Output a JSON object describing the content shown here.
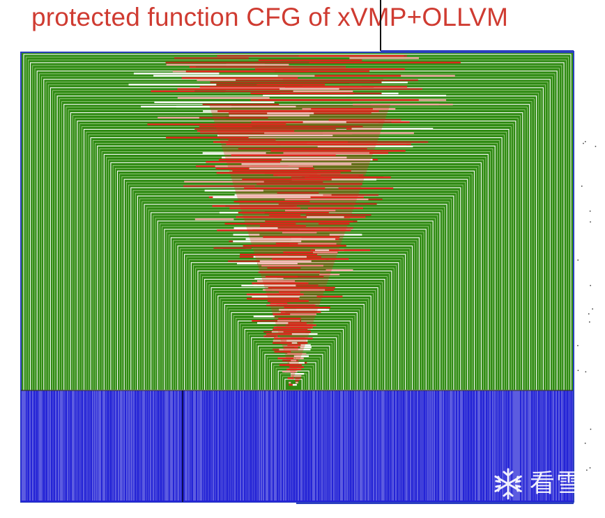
{
  "figure": {
    "title": "protected function CFG of xVMP+OLLVM"
  },
  "colors": {
    "title": "#cf3b31",
    "block_border": "#2b3fbf",
    "dispatcher_green": "#2e8a12",
    "dispatcher_light": "#b5d99f",
    "obfuscated_red": "#e4231c",
    "obfuscated_dark_red": "#b4321a",
    "obfuscated_pink": "#f3a7a2",
    "return_blue": "#2424d6",
    "edge_dark": "#111111"
  },
  "watermark": {
    "logo": "snowflake-icon",
    "text": "看雪"
  }
}
